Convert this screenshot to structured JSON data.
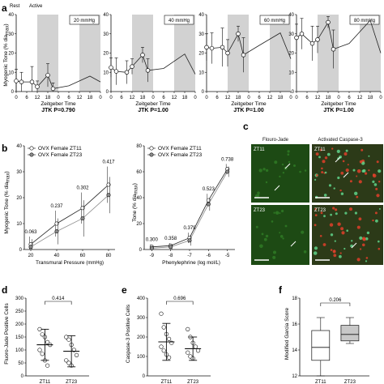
{
  "panels": {
    "a": {
      "label": "a",
      "ylabel": "Myogenic Tone (% dia",
      "ylabel_sub": "max",
      "xlabel": "Zeitgeber Time",
      "y_ticks": [
        "0",
        "10",
        "20",
        "30",
        "40"
      ],
      "x_ticks": [
        "0",
        "6",
        "12",
        "18",
        "0",
        "6",
        "12",
        "18",
        "0"
      ],
      "rest_label": "Rest",
      "active_label": "Active",
      "charts": [
        {
          "pressure": "20 mmHg",
          "jtk": "JTK P=0.790",
          "mean": [
            5.5,
            5.0,
            5.0,
            2.5,
            8.5,
            1.5
          ],
          "sem": [
            6,
            5,
            8,
            3,
            6,
            3
          ],
          "trace": [
            5.5,
            5.0,
            5.0,
            2.5,
            8.5,
            1.5,
            3.0,
            8.0,
            5.0
          ]
        },
        {
          "pressure": "40 mmHg",
          "jtk": "JTK P=1.00",
          "mean": [
            12.5,
            10.5,
            10.0,
            13.0,
            19.0,
            11.0
          ],
          "sem": [
            5,
            7,
            6,
            4,
            4,
            6
          ],
          "trace": [
            12.5,
            10.5,
            10.0,
            13.0,
            19.0,
            11.0,
            12.0,
            19.5,
            9.0
          ]
        },
        {
          "pressure": "60 mmHg",
          "jtk": "JTK P=1.00",
          "mean": [
            23.0,
            22.5,
            23.0,
            20.0,
            30.0,
            19.0
          ],
          "sem": [
            7,
            8,
            10,
            7,
            4,
            9
          ],
          "trace": [
            23.0,
            22.5,
            23.0,
            20.0,
            30.0,
            19.0,
            24.0,
            30.5,
            17.0
          ]
        },
        {
          "pressure": "80 mmHg",
          "jtk": "JTK P=1.00",
          "mean": [
            28.0,
            30.0,
            25.0,
            27.0,
            36.0,
            22.0
          ],
          "sem": [
            7,
            8,
            9,
            7,
            3,
            10
          ],
          "trace": [
            28.0,
            30.0,
            25.0,
            27.0,
            36.0,
            22.0,
            25.0,
            37.0,
            20.0
          ]
        }
      ]
    },
    "b": {
      "label": "b",
      "left": {
        "ylabel": "Myogenic Tone (% dia",
        "ylabel_sub": "max",
        "xlabel": "Transmural Pressure",
        "xlabel_unit": "(mmHg)",
        "y_ticks": [
          "0",
          "10",
          "20",
          "30",
          "40"
        ],
        "x_ticks": [
          "20",
          "40",
          "60",
          "80"
        ],
        "annotations": [
          "0.063",
          "0.237",
          "0.302",
          "0.417"
        ],
        "legend": [
          "OVX Female ZT11",
          "OVX Female ZT23"
        ]
      },
      "right": {
        "ylabel": "Tone (% dia",
        "ylabel_sub": "max",
        "xlabel": "Phenylephrine",
        "xlabel_unit": "(log mol/L)",
        "y_ticks": [
          "0",
          "20",
          "40",
          "60",
          "80"
        ],
        "x_ticks": [
          "-9",
          "-8",
          "-7",
          "-6",
          "-5"
        ],
        "annotations": [
          "0.300",
          "0.358",
          "0.379",
          "0.523",
          "0.738"
        ],
        "legend": [
          "OVX Female ZT11",
          "OVX Female ZT23"
        ]
      }
    },
    "c": {
      "label": "c",
      "col_titles": [
        "Flouro-Jade",
        "Activated Caspase-3"
      ],
      "row_labels": [
        "ZT11",
        "ZT23"
      ]
    },
    "d": {
      "label": "d",
      "ylabel": "Fluoro-Jade Positive Cells",
      "p": "0.414",
      "y_ticks": [
        "0",
        "50",
        "100",
        "150",
        "200",
        "250",
        "300"
      ],
      "x_ticks": [
        "ZT11",
        "ZT23"
      ]
    },
    "e": {
      "label": "e",
      "ylabel": "Caspase-3 Positive Cells",
      "p": "0.696",
      "y_ticks": [
        "0",
        "100",
        "200",
        "300",
        "400"
      ],
      "x_ticks": [
        "ZT11",
        "ZT23"
      ]
    },
    "f": {
      "label": "f",
      "ylabel": "Modified Garcia Score",
      "p": "0.206",
      "y_ticks": [
        "12",
        "14",
        "16",
        "18"
      ],
      "x_ticks": [
        "ZT11",
        "ZT23"
      ]
    }
  },
  "colors": {
    "shade": "#d2d2d2",
    "line": "#222222",
    "zt23_marker": "#8c8c8c",
    "fluoro_bg": "#1d4a14",
    "caspase_bg": "#2c3a18"
  },
  "chart_data": [
    {
      "type": "line",
      "title": "",
      "pressure_label": "20 mmHg",
      "xlabel": "Zeitgeber Time",
      "ylabel": "Myogenic Tone (% diamax)",
      "ylim": [
        0,
        40
      ],
      "xlim": [
        0,
        48
      ],
      "x": [
        0,
        3,
        9,
        12,
        18,
        21
      ],
      "series": [
        {
          "values": [
            5.5,
            5.0,
            5.0,
            2.5,
            8.5,
            1.5
          ],
          "error": [
            6,
            5,
            8,
            3,
            6,
            3
          ]
        }
      ],
      "annotation": "JTK P=0.790",
      "shaded_intervals": [
        [
          12,
          24
        ],
        [
          36,
          48
        ]
      ]
    },
    {
      "type": "line",
      "title": "",
      "pressure_label": "40 mmHg",
      "xlabel": "Zeitgeber Time",
      "ylabel": "Myogenic Tone (% diamax)",
      "ylim": [
        0,
        40
      ],
      "xlim": [
        0,
        48
      ],
      "x": [
        0,
        3,
        9,
        12,
        18,
        21
      ],
      "series": [
        {
          "values": [
            12.5,
            10.5,
            10.0,
            13.0,
            19.0,
            11.0
          ],
          "error": [
            5,
            7,
            6,
            4,
            4,
            6
          ]
        }
      ],
      "annotation": "JTK P=1.00",
      "shaded_intervals": [
        [
          12,
          24
        ],
        [
          36,
          48
        ]
      ]
    },
    {
      "type": "line",
      "title": "",
      "pressure_label": "60 mmHg",
      "xlabel": "Zeitgeber Time",
      "ylabel": "Myogenic Tone (% diamax)",
      "ylim": [
        0,
        40
      ],
      "xlim": [
        0,
        48
      ],
      "x": [
        0,
        3,
        9,
        12,
        18,
        21
      ],
      "series": [
        {
          "values": [
            23.0,
            22.5,
            23.0,
            20.0,
            30.0,
            19.0
          ],
          "error": [
            7,
            8,
            10,
            7,
            4,
            9
          ]
        }
      ],
      "annotation": "JTK P=1.00",
      "shaded_intervals": [
        [
          12,
          24
        ],
        [
          36,
          48
        ]
      ]
    },
    {
      "type": "line",
      "title": "",
      "pressure_label": "80 mmHg",
      "xlabel": "Zeitgeber Time",
      "ylabel": "Myogenic Tone (% diamax)",
      "ylim": [
        0,
        40
      ],
      "xlim": [
        0,
        48
      ],
      "x": [
        0,
        3,
        9,
        12,
        18,
        21
      ],
      "series": [
        {
          "values": [
            28.0,
            30.0,
            25.0,
            27.0,
            36.0,
            22.0
          ],
          "error": [
            7,
            8,
            9,
            7,
            3,
            10
          ]
        }
      ],
      "annotation": "JTK P=1.00",
      "shaded_intervals": [
        [
          12,
          24
        ],
        [
          36,
          48
        ]
      ]
    },
    {
      "type": "line",
      "xlabel": "Transmural Pressure (mmHg)",
      "ylabel": "Myogenic Tone (% diamax)",
      "ylim": [
        0,
        40
      ],
      "x": [
        20,
        40,
        60,
        80
      ],
      "series": [
        {
          "name": "OVX Female ZT11",
          "values": [
            2,
            10,
            16,
            25
          ],
          "error": [
            3,
            5,
            6,
            7
          ]
        },
        {
          "name": "OVX Female ZT23",
          "values": [
            1,
            7,
            12,
            21
          ],
          "error": [
            3,
            5,
            7,
            7
          ]
        }
      ],
      "annotations": [
        "0.063",
        "0.237",
        "0.302",
        "0.417"
      ],
      "legend": "top-left"
    },
    {
      "type": "line",
      "xlabel": "Phenylephrine (log mol/L)",
      "ylabel": "Tone (% diamax)",
      "ylim": [
        0,
        80
      ],
      "x": [
        -9,
        -8,
        -7,
        -6,
        -5
      ],
      "series": [
        {
          "name": "OVX Female ZT11",
          "values": [
            2,
            3,
            9,
            38,
            62
          ],
          "error": [
            2,
            2,
            4,
            5,
            4
          ]
        },
        {
          "name": "OVX Female ZT23",
          "values": [
            1,
            2,
            7,
            35,
            60
          ],
          "error": [
            2,
            2,
            4,
            5,
            4
          ]
        }
      ],
      "annotations": [
        "0.300",
        "0.358",
        "0.379",
        "0.523",
        "0.738"
      ],
      "legend": "top-left"
    },
    {
      "type": "scatter",
      "ylabel": "Fluoro-Jade Positive Cells",
      "ylim": [
        0,
        300
      ],
      "categories": [
        "ZT11",
        "ZT23"
      ],
      "series": [
        {
          "name": "ZT11",
          "values": [
            180,
            160,
            150,
            130,
            120,
            100,
            85,
            60,
            40
          ],
          "mean": 120,
          "sd": 60
        },
        {
          "name": "ZT23",
          "values": [
            150,
            140,
            120,
            100,
            80,
            60,
            50,
            40
          ],
          "mean": 95,
          "sd": 60
        }
      ],
      "annotation": "0.414"
    },
    {
      "type": "scatter",
      "ylabel": "Caspase-3 Positive Cells",
      "ylim": [
        0,
        400
      ],
      "categories": [
        "ZT11",
        "ZT23"
      ],
      "series": [
        {
          "name": "ZT11",
          "values": [
            320,
            250,
            215,
            190,
            170,
            150,
            130,
            110,
            95
          ],
          "mean": 175,
          "sd": 95
        },
        {
          "name": "ZT23",
          "values": [
            240,
            200,
            170,
            150,
            130,
            120,
            100,
            90
          ],
          "mean": 140,
          "sd": 60
        }
      ],
      "annotation": "0.696"
    },
    {
      "type": "box",
      "ylabel": "Modified Garcia Score",
      "ylim": [
        12,
        18
      ],
      "categories": [
        "ZT11",
        "ZT23"
      ],
      "series": [
        {
          "name": "ZT11",
          "min": 12.0,
          "q1": 13.2,
          "median": 14.2,
          "q3": 15.5,
          "max": 16.5
        },
        {
          "name": "ZT23",
          "min": 14.5,
          "q1": 14.7,
          "median": 15.2,
          "q3": 15.9,
          "max": 16.5
        }
      ],
      "annotation": "0.206"
    }
  ]
}
